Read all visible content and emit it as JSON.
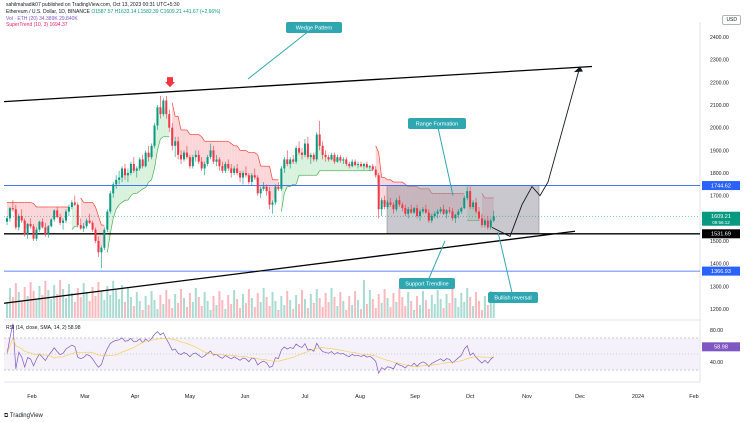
{
  "header": {
    "author_line": "sahilmahadik07 published on TradingView.com, Oct 13, 2023 00:31 UTC+5:30",
    "symbol": "Ethereum / U.S. Dollar, 1D, BINANCE",
    "ohlc": "O1587.57  H1633.14  L1582.39  C1609.21  +41.67 (+2.66%)",
    "rsi_line": "Vol · ETH (20)  34.389K  29.840K",
    "supertrend_line": "SuperTrend (10, 3)  1694.37"
  },
  "currency": "USD",
  "footer": "TradingView",
  "colors": {
    "up": "#089981",
    "down": "#f23645",
    "trendline": "#000000",
    "support_level": "#000000",
    "resistance_level": "#2962ff",
    "rsi": "#7e57c2",
    "callout_bg": "#2fa7b1",
    "zone_fill": "#9a9ba5",
    "supertrend_up_fill": "#d9f2de",
    "supertrend_down_fill": "#fbd6d9",
    "supertrend_up": "#4caf50",
    "supertrend_down": "#f44336",
    "arrow_marker": "#f23645"
  },
  "chart_data": {
    "type": "candlestick",
    "x_axis": {
      "labels": [
        "Feb",
        "Mar",
        "Apr",
        "May",
        "Jun",
        "Jul",
        "Aug",
        "Sep",
        "Oct",
        "Nov",
        "Dec",
        "2024",
        "Feb"
      ]
    },
    "y_axis": {
      "ticks": [
        2400,
        2300,
        2200,
        2100,
        2000,
        1900,
        1800,
        1700,
        1600,
        1500,
        1400,
        1300,
        1200
      ],
      "range": [
        1160,
        2440
      ]
    },
    "price_levels": [
      {
        "label": "1744.62",
        "value": 1744.62,
        "kind": "resistance"
      },
      {
        "label": "1609.21",
        "value": 1609.21,
        "kind": "last"
      },
      {
        "label": "1531.69",
        "value": 1531.69,
        "kind": "support"
      },
      {
        "label": "1366.93",
        "value": 1366.93,
        "kind": "resistance"
      }
    ],
    "last_price_countdown": "09:56:12",
    "annotations": [
      {
        "text": "Wedge Pattern"
      },
      {
        "text": "Range Formation"
      },
      {
        "text": "Support Trendline"
      },
      {
        "text": "Bullish reversal"
      }
    ],
    "rsi": {
      "ticks": [
        "80.00",
        "60.00",
        "40.00"
      ],
      "range": [
        20,
        90
      ],
      "value_label": "58.98",
      "bands": [
        70,
        30
      ]
    },
    "series": [
      {
        "name": "ETH/USD",
        "ohlc": [
          [
            1585,
            1610,
            1570,
            1600
          ],
          [
            1600,
            1650,
            1585,
            1645
          ],
          [
            1645,
            1680,
            1630,
            1640
          ],
          [
            1640,
            1660,
            1550,
            1560
          ],
          [
            1560,
            1620,
            1545,
            1610
          ],
          [
            1610,
            1640,
            1580,
            1590
          ],
          [
            1590,
            1600,
            1520,
            1530
          ],
          [
            1530,
            1580,
            1510,
            1575
          ],
          [
            1575,
            1600,
            1555,
            1565
          ],
          [
            1565,
            1575,
            1500,
            1510
          ],
          [
            1510,
            1560,
            1500,
            1550
          ],
          [
            1550,
            1590,
            1540,
            1585
          ],
          [
            1585,
            1600,
            1555,
            1560
          ],
          [
            1560,
            1580,
            1520,
            1530
          ],
          [
            1530,
            1570,
            1515,
            1565
          ],
          [
            1565,
            1600,
            1560,
            1595
          ],
          [
            1595,
            1640,
            1585,
            1635
          ],
          [
            1635,
            1650,
            1600,
            1605
          ],
          [
            1605,
            1620,
            1570,
            1580
          ],
          [
            1580,
            1600,
            1550,
            1590
          ],
          [
            1590,
            1640,
            1580,
            1630
          ],
          [
            1630,
            1660,
            1610,
            1650
          ],
          [
            1650,
            1680,
            1640,
            1670
          ],
          [
            1670,
            1700,
            1655,
            1660
          ],
          [
            1660,
            1670,
            1560,
            1570
          ],
          [
            1570,
            1600,
            1550,
            1555
          ],
          [
            1555,
            1580,
            1540,
            1565
          ],
          [
            1565,
            1600,
            1555,
            1590
          ],
          [
            1590,
            1620,
            1575,
            1580
          ],
          [
            1580,
            1590,
            1540,
            1550
          ],
          [
            1550,
            1560,
            1490,
            1500
          ],
          [
            1500,
            1520,
            1430,
            1450
          ],
          [
            1450,
            1480,
            1380,
            1470
          ],
          [
            1470,
            1560,
            1460,
            1550
          ],
          [
            1550,
            1640,
            1540,
            1630
          ],
          [
            1630,
            1720,
            1620,
            1710
          ],
          [
            1710,
            1760,
            1690,
            1750
          ],
          [
            1750,
            1790,
            1730,
            1770
          ],
          [
            1770,
            1810,
            1750,
            1780
          ],
          [
            1780,
            1830,
            1760,
            1820
          ],
          [
            1820,
            1840,
            1770,
            1790
          ],
          [
            1790,
            1820,
            1760,
            1800
          ],
          [
            1800,
            1850,
            1790,
            1840
          ],
          [
            1840,
            1870,
            1800,
            1810
          ],
          [
            1810,
            1830,
            1780,
            1820
          ],
          [
            1820,
            1870,
            1810,
            1860
          ],
          [
            1860,
            1880,
            1820,
            1830
          ],
          [
            1830,
            1900,
            1825,
            1890
          ],
          [
            1890,
            1920,
            1850,
            1870
          ],
          [
            1870,
            1930,
            1860,
            1920
          ],
          [
            1920,
            2020,
            1910,
            2010
          ],
          [
            2010,
            2100,
            1990,
            2090
          ],
          [
            2090,
            2140,
            2040,
            2060
          ],
          [
            2060,
            2130,
            2050,
            2120
          ],
          [
            2120,
            2140,
            2040,
            2060
          ],
          [
            2060,
            2080,
            1980,
            2000
          ],
          [
            2000,
            2020,
            1900,
            1920
          ],
          [
            1920,
            1960,
            1870,
            1940
          ],
          [
            1940,
            1960,
            1860,
            1880
          ],
          [
            1880,
            1900,
            1840,
            1860
          ],
          [
            1860,
            1900,
            1850,
            1890
          ],
          [
            1890,
            1920,
            1860,
            1870
          ],
          [
            1870,
            1880,
            1820,
            1830
          ],
          [
            1830,
            1880,
            1820,
            1870
          ],
          [
            1870,
            1900,
            1850,
            1880
          ],
          [
            1880,
            1900,
            1840,
            1850
          ],
          [
            1850,
            1870,
            1810,
            1820
          ],
          [
            1820,
            1850,
            1790,
            1840
          ],
          [
            1840,
            1880,
            1830,
            1870
          ],
          [
            1870,
            1930,
            1860,
            1900
          ],
          [
            1900,
            1920,
            1840,
            1850
          ],
          [
            1850,
            1880,
            1830,
            1860
          ],
          [
            1860,
            1870,
            1810,
            1830
          ],
          [
            1830,
            1850,
            1800,
            1810
          ],
          [
            1810,
            1850,
            1800,
            1840
          ],
          [
            1840,
            1860,
            1810,
            1820
          ],
          [
            1820,
            1840,
            1780,
            1800
          ],
          [
            1800,
            1830,
            1790,
            1820
          ],
          [
            1820,
            1840,
            1790,
            1800
          ],
          [
            1800,
            1810,
            1760,
            1780
          ],
          [
            1780,
            1810,
            1750,
            1800
          ],
          [
            1800,
            1830,
            1780,
            1790
          ],
          [
            1790,
            1800,
            1750,
            1760
          ],
          [
            1760,
            1800,
            1745,
            1790
          ],
          [
            1790,
            1820,
            1770,
            1780
          ],
          [
            1780,
            1790,
            1700,
            1710
          ],
          [
            1710,
            1740,
            1690,
            1730
          ],
          [
            1730,
            1760,
            1720,
            1740
          ],
          [
            1740,
            1750,
            1700,
            1720
          ],
          [
            1720,
            1740,
            1640,
            1660
          ],
          [
            1660,
            1680,
            1620,
            1670
          ],
          [
            1670,
            1750,
            1660,
            1740
          ],
          [
            1740,
            1760,
            1720,
            1730
          ],
          [
            1730,
            1830,
            1720,
            1820
          ],
          [
            1820,
            1870,
            1800,
            1860
          ],
          [
            1860,
            1900,
            1830,
            1840
          ],
          [
            1840,
            1870,
            1820,
            1860
          ],
          [
            1860,
            1880,
            1840,
            1850
          ],
          [
            1850,
            1920,
            1840,
            1910
          ],
          [
            1910,
            1940,
            1880,
            1890
          ],
          [
            1890,
            1910,
            1860,
            1880
          ],
          [
            1880,
            1950,
            1870,
            1930
          ],
          [
            1930,
            1960,
            1860,
            1870
          ],
          [
            1870,
            1890,
            1840,
            1880
          ],
          [
            1880,
            1890,
            1850,
            1860
          ],
          [
            1860,
            1980,
            1850,
            1970
          ],
          [
            1970,
            2030,
            1900,
            1920
          ],
          [
            1920,
            1940,
            1860,
            1880
          ],
          [
            1880,
            1900,
            1850,
            1870
          ],
          [
            1870,
            1880,
            1850,
            1860
          ],
          [
            1860,
            1890,
            1855,
            1880
          ],
          [
            1880,
            1890,
            1840,
            1850
          ],
          [
            1850,
            1880,
            1845,
            1870
          ],
          [
            1870,
            1880,
            1845,
            1855
          ],
          [
            1855,
            1870,
            1840,
            1860
          ],
          [
            1860,
            1870,
            1830,
            1840
          ],
          [
            1840,
            1850,
            1820,
            1830
          ],
          [
            1830,
            1860,
            1825,
            1850
          ],
          [
            1850,
            1860,
            1830,
            1835
          ],
          [
            1835,
            1850,
            1820,
            1840
          ],
          [
            1840,
            1850,
            1825,
            1830
          ],
          [
            1830,
            1845,
            1815,
            1840
          ],
          [
            1840,
            1850,
            1820,
            1825
          ],
          [
            1825,
            1835,
            1810,
            1830
          ],
          [
            1830,
            1840,
            1810,
            1815
          ],
          [
            1815,
            1830,
            1780,
            1790
          ],
          [
            1790,
            1800,
            1600,
            1640
          ],
          [
            1640,
            1690,
            1610,
            1680
          ],
          [
            1680,
            1700,
            1640,
            1650
          ],
          [
            1650,
            1680,
            1640,
            1670
          ],
          [
            1670,
            1690,
            1650,
            1660
          ],
          [
            1660,
            1670,
            1620,
            1640
          ],
          [
            1640,
            1690,
            1630,
            1680
          ],
          [
            1680,
            1700,
            1650,
            1660
          ],
          [
            1660,
            1670,
            1630,
            1645
          ],
          [
            1645,
            1660,
            1610,
            1620
          ],
          [
            1620,
            1650,
            1600,
            1640
          ],
          [
            1640,
            1660,
            1620,
            1625
          ],
          [
            1625,
            1650,
            1620,
            1645
          ],
          [
            1645,
            1660,
            1600,
            1610
          ],
          [
            1610,
            1640,
            1590,
            1630
          ],
          [
            1630,
            1650,
            1620,
            1640
          ],
          [
            1640,
            1660,
            1620,
            1625
          ],
          [
            1625,
            1640,
            1580,
            1590
          ],
          [
            1590,
            1620,
            1580,
            1610
          ],
          [
            1610,
            1630,
            1600,
            1620
          ],
          [
            1620,
            1640,
            1600,
            1630
          ],
          [
            1630,
            1650,
            1620,
            1640
          ],
          [
            1640,
            1660,
            1615,
            1620
          ],
          [
            1620,
            1640,
            1600,
            1635
          ],
          [
            1635,
            1650,
            1620,
            1630
          ],
          [
            1630,
            1645,
            1590,
            1600
          ],
          [
            1600,
            1620,
            1580,
            1615
          ],
          [
            1615,
            1640,
            1600,
            1630
          ],
          [
            1630,
            1650,
            1620,
            1645
          ],
          [
            1645,
            1700,
            1640,
            1690
          ],
          [
            1690,
            1740,
            1680,
            1720
          ],
          [
            1720,
            1740,
            1640,
            1650
          ],
          [
            1650,
            1680,
            1640,
            1670
          ],
          [
            1670,
            1690,
            1620,
            1630
          ],
          [
            1630,
            1650,
            1590,
            1600
          ],
          [
            1600,
            1620,
            1560,
            1570
          ],
          [
            1570,
            1600,
            1560,
            1590
          ],
          [
            1590,
            1610,
            1550,
            1560
          ],
          [
            1560,
            1600,
            1550,
            1590
          ],
          [
            1590,
            1633,
            1582,
            1609
          ]
        ]
      }
    ]
  }
}
